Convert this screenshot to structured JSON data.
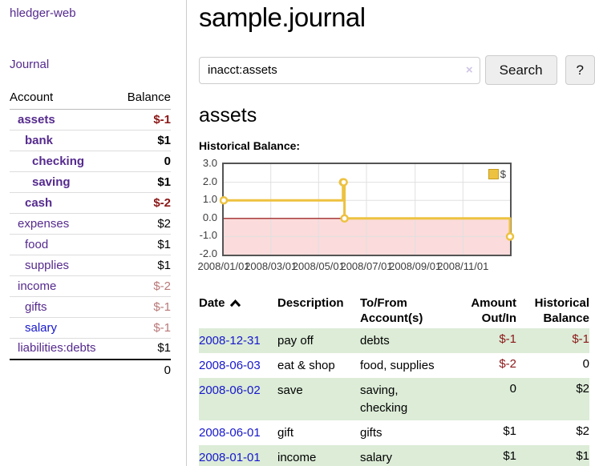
{
  "colors": {
    "link_purple": "#552a8e",
    "link_blue": "#1717cc",
    "neg_strong": "#8b1717",
    "neg_dim": "#b97878",
    "row_green": "#dcecd7",
    "button_bg": "#eeeeee",
    "chart_line": "#edc240",
    "chart_border": "#545454",
    "chart_grid": "#e0e0e0",
    "chart_zero": "#8b0000",
    "chart_negative_fill": "#fbdbdb"
  },
  "sidebar": {
    "brand": "hledger-web",
    "journal_label": "Journal",
    "accounts_table": {
      "account_header": "Account",
      "balance_header": "Balance",
      "rows": [
        {
          "account": "assets",
          "balance": "$-1",
          "depth": 0,
          "bold": true,
          "negative": "strong"
        },
        {
          "account": "bank",
          "balance": "$1",
          "depth": 1,
          "bold": true
        },
        {
          "account": "checking",
          "balance": "0",
          "depth": 2,
          "bold": true
        },
        {
          "account": "saving",
          "balance": "$1",
          "depth": 2,
          "bold": true
        },
        {
          "account": "cash",
          "balance": "$-2",
          "depth": 1,
          "bold": true,
          "negative": "strong"
        },
        {
          "account": "expenses",
          "balance": "$2",
          "depth": 0
        },
        {
          "account": "food",
          "balance": "$1",
          "depth": 1
        },
        {
          "account": "supplies",
          "balance": "$1",
          "depth": 1
        },
        {
          "account": "income",
          "balance": "$-2",
          "depth": 0,
          "negative": "dim"
        },
        {
          "account": "gifts",
          "balance": "$-1",
          "depth": 1,
          "negative": "dim"
        },
        {
          "account": "salary",
          "balance": "$-1",
          "depth": 1,
          "negative": "dim",
          "link": "blue"
        },
        {
          "account": "liabilities:debts",
          "balance": "$1",
          "depth": 0,
          "last": true
        }
      ],
      "total": "0"
    }
  },
  "header": {
    "title": "sample.journal"
  },
  "search": {
    "value": "inacct:assets",
    "clear_icon": "×",
    "button_label": "Search",
    "help_label": "?"
  },
  "register": {
    "heading": "assets",
    "chart_label": "Historical Balance:"
  },
  "chart_data": {
    "type": "line",
    "line_style": "steps",
    "title": "Historical Balance",
    "series": [
      {
        "name": "$",
        "color": "#edc240",
        "points": [
          [
            "2008-01-01",
            1
          ],
          [
            "2008-06-01",
            2
          ],
          [
            "2008-06-02",
            2
          ],
          [
            "2008-06-03",
            0
          ],
          [
            "2008-12-31",
            -1
          ]
        ]
      }
    ],
    "x_range": [
      "2008-01-01",
      "2008-12-31"
    ],
    "ylim": [
      -2,
      3
    ],
    "y_ticks": [
      3,
      2,
      1,
      0,
      -1,
      -2
    ],
    "y_tick_labels": [
      "3.0",
      "2.0",
      "1.0",
      "0.0",
      "-1.0",
      "-2.0"
    ],
    "x_tick_labels": [
      "2008/01/01",
      "2008/03/01",
      "2008/05/01",
      "2008/07/01",
      "2008/09/01",
      "2008/11/01"
    ],
    "grid": true,
    "legend_position": "top-right",
    "zero_line": true,
    "negative_region_shaded": true
  },
  "table": {
    "headers": {
      "date": "Date",
      "sort_icon": "chevron-up",
      "description": "Description",
      "accounts": "To/From Account(s)",
      "amount": "Amount Out/In",
      "balance": "Historical Balance"
    },
    "rows": [
      {
        "date": "2008-12-31",
        "description": "pay off",
        "accounts": "debts",
        "amount": "$-1",
        "balance": "$-1"
      },
      {
        "date": "2008-06-03",
        "description": "eat & shop",
        "accounts": "food, supplies",
        "amount": "$-2",
        "balance": "0"
      },
      {
        "date": "2008-06-02",
        "description": "save",
        "accounts": "saving, checking",
        "amount": "0",
        "balance": "$2"
      },
      {
        "date": "2008-06-01",
        "description": "gift",
        "accounts": "gifts",
        "amount": "$1",
        "balance": "$2"
      },
      {
        "date": "2008-01-01",
        "description": "income",
        "accounts": "salary",
        "amount": "$1",
        "balance": "$1"
      }
    ]
  }
}
